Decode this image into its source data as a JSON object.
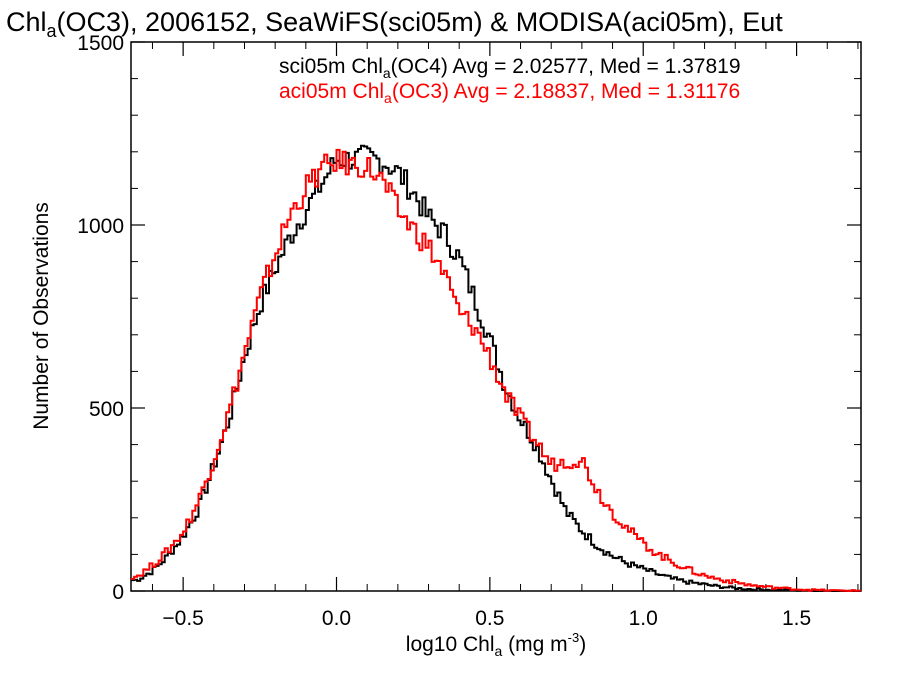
{
  "chart_data": {
    "type": "histogram",
    "title": {
      "prefix": "Chl",
      "sub": "a",
      "rest": "(OC3), 2006152, SeaWiFS(sci05m) & MODISA(aci05m), Eut"
    },
    "xlabel": {
      "prefix": "log10 Chl",
      "sub": "a",
      "middle": " (mg m",
      "sup": "-3",
      "suffix": ")"
    },
    "ylabel": "Number of Observations",
    "xlim": [
      -0.67,
      1.71
    ],
    "ylim": [
      0,
      1500
    ],
    "x_ticks": [
      -0.5,
      0.0,
      0.5,
      1.0,
      1.5
    ],
    "x_tick_labels": [
      "−0.5",
      "0.0",
      "0.5",
      "1.0",
      "1.5"
    ],
    "y_ticks": [
      0,
      500,
      1000,
      1500
    ],
    "y_tick_labels": [
      "0",
      "500",
      "1000",
      "1500"
    ],
    "grid": false,
    "legend_position": "top-right",
    "series": [
      {
        "name_prefix": "sci05m Chl",
        "name_sub": "a",
        "name_suffix": "(OC4) Avg = 2.02577, Med = 1.37819",
        "color": "#000000",
        "points": [
          [
            -0.65,
            30
          ],
          [
            -0.6,
            55
          ],
          [
            -0.55,
            95
          ],
          [
            -0.5,
            150
          ],
          [
            -0.45,
            225
          ],
          [
            -0.4,
            340
          ],
          [
            -0.35,
            470
          ],
          [
            -0.3,
            640
          ],
          [
            -0.25,
            780
          ],
          [
            -0.2,
            880
          ],
          [
            -0.15,
            970
          ],
          [
            -0.1,
            1040
          ],
          [
            -0.05,
            1110
          ],
          [
            0.0,
            1180
          ],
          [
            0.05,
            1180
          ],
          [
            0.1,
            1185
          ],
          [
            0.15,
            1175
          ],
          [
            0.2,
            1145
          ],
          [
            0.25,
            1090
          ],
          [
            0.3,
            1020
          ],
          [
            0.35,
            980
          ],
          [
            0.4,
            910
          ],
          [
            0.45,
            800
          ],
          [
            0.5,
            690
          ],
          [
            0.55,
            560
          ],
          [
            0.6,
            470
          ],
          [
            0.65,
            400
          ],
          [
            0.7,
            305
          ],
          [
            0.75,
            215
          ],
          [
            0.8,
            165
          ],
          [
            0.85,
            125
          ],
          [
            0.9,
            95
          ],
          [
            0.95,
            75
          ],
          [
            1.0,
            60
          ],
          [
            1.05,
            45
          ],
          [
            1.1,
            32
          ],
          [
            1.15,
            24
          ],
          [
            1.2,
            18
          ],
          [
            1.25,
            12
          ],
          [
            1.3,
            8
          ],
          [
            1.35,
            5
          ],
          [
            1.4,
            4
          ],
          [
            1.45,
            3
          ],
          [
            1.5,
            2
          ],
          [
            1.55,
            1
          ],
          [
            1.6,
            1
          ],
          [
            1.65,
            0
          ]
        ]
      },
      {
        "name_prefix": "aci05m Chl",
        "name_sub": "a",
        "name_suffix": "(OC3) Avg = 2.18837, Med = 1.31176",
        "color": "#ff0000",
        "points": [
          [
            -0.65,
            40
          ],
          [
            -0.6,
            70
          ],
          [
            -0.55,
            110
          ],
          [
            -0.5,
            160
          ],
          [
            -0.45,
            245
          ],
          [
            -0.4,
            360
          ],
          [
            -0.35,
            490
          ],
          [
            -0.3,
            650
          ],
          [
            -0.25,
            800
          ],
          [
            -0.2,
            920
          ],
          [
            -0.15,
            1030
          ],
          [
            -0.1,
            1100
          ],
          [
            -0.05,
            1150
          ],
          [
            0.0,
            1175
          ],
          [
            0.05,
            1165
          ],
          [
            0.1,
            1160
          ],
          [
            0.15,
            1120
          ],
          [
            0.2,
            1040
          ],
          [
            0.25,
            990
          ],
          [
            0.3,
            940
          ],
          [
            0.35,
            870
          ],
          [
            0.4,
            760
          ],
          [
            0.45,
            720
          ],
          [
            0.5,
            640
          ],
          [
            0.55,
            540
          ],
          [
            0.6,
            470
          ],
          [
            0.65,
            410
          ],
          [
            0.7,
            345
          ],
          [
            0.75,
            355
          ],
          [
            0.8,
            360
          ],
          [
            0.85,
            275
          ],
          [
            0.9,
            215
          ],
          [
            0.95,
            170
          ],
          [
            1.0,
            130
          ],
          [
            1.05,
            100
          ],
          [
            1.1,
            78
          ],
          [
            1.15,
            58
          ],
          [
            1.2,
            42
          ],
          [
            1.25,
            32
          ],
          [
            1.3,
            24
          ],
          [
            1.35,
            16
          ],
          [
            1.4,
            11
          ],
          [
            1.45,
            8
          ],
          [
            1.5,
            5
          ],
          [
            1.55,
            3
          ],
          [
            1.6,
            2
          ],
          [
            1.65,
            1
          ]
        ]
      }
    ]
  }
}
